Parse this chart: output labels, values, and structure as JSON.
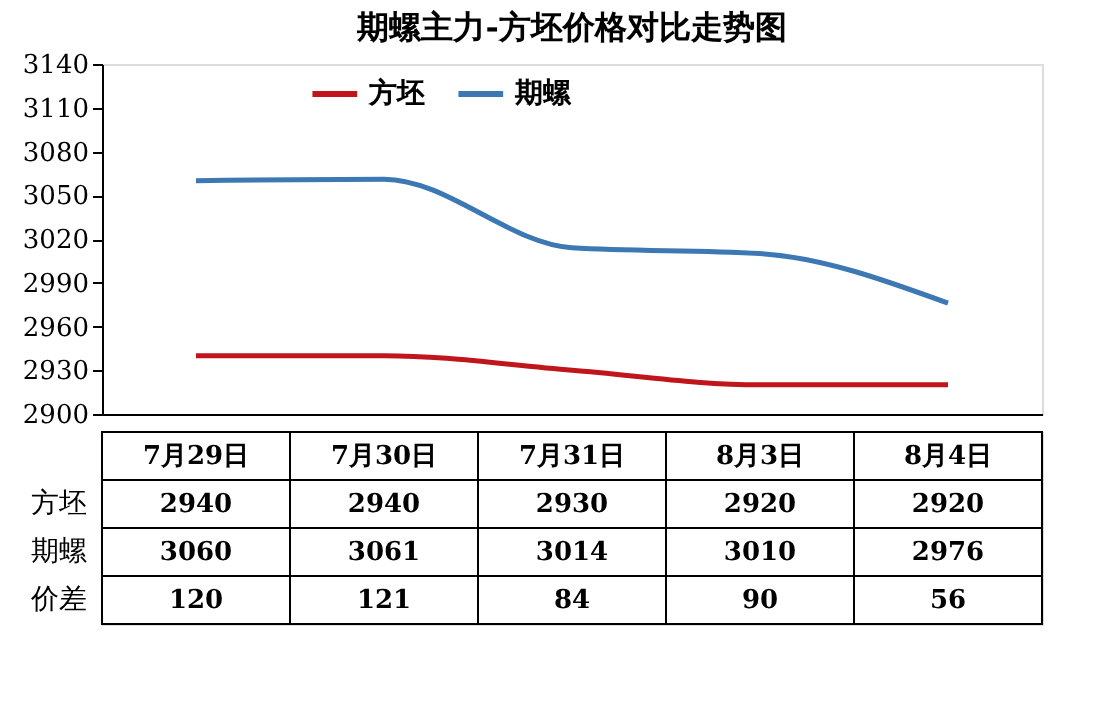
{
  "chart_data": {
    "type": "line",
    "title": "期螺主力-方坯价格对比走势图",
    "categories": [
      "7月29日",
      "7月30日",
      "7月31日",
      "8月3日",
      "8月4日"
    ],
    "series": [
      {
        "name": "方坯",
        "color": "#c0161b",
        "values": [
          2940,
          2940,
          2930,
          2920,
          2920
        ]
      },
      {
        "name": "期螺",
        "color": "#3c78b4",
        "values": [
          3060,
          3061,
          3014,
          3010,
          2976
        ]
      }
    ],
    "annotations": [
      "价差",
      "120",
      "121",
      "84",
      "90",
      "56"
    ],
    "ylim": [
      2900,
      3140
    ],
    "yticks": [
      2900,
      2930,
      2960,
      2990,
      3020,
      3050,
      3080,
      3110,
      3140
    ],
    "grid": false,
    "legend": "top",
    "marker": "none",
    "line_style": "solid",
    "data_labels": true
  }
}
